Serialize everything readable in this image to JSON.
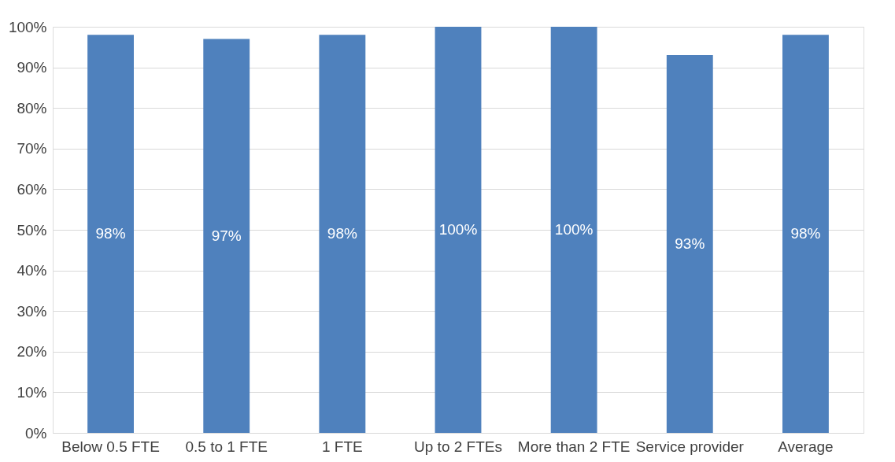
{
  "chart_data": {
    "type": "bar",
    "categories": [
      "Below 0.5 FTE",
      "0.5 to 1 FTE",
      "1 FTE",
      "Up to 2 FTEs",
      "More than 2 FTE",
      "Service provider",
      "Average"
    ],
    "values": [
      98,
      97,
      98,
      100,
      100,
      93,
      98
    ],
    "value_labels": [
      "98%",
      "97%",
      "98%",
      "100%",
      "100%",
      "93%",
      "98%"
    ],
    "color": "#4f81bd",
    "ylim": [
      0,
      100
    ],
    "yticks": [
      {
        "value": 0,
        "label": "0%"
      },
      {
        "value": 10,
        "label": "10%"
      },
      {
        "value": 20,
        "label": "20%"
      },
      {
        "value": 30,
        "label": "30%"
      },
      {
        "value": 40,
        "label": "40%"
      },
      {
        "value": 50,
        "label": "50%"
      },
      {
        "value": 60,
        "label": "60%"
      },
      {
        "value": 70,
        "label": "70%"
      },
      {
        "value": 80,
        "label": "80%"
      },
      {
        "value": 90,
        "label": "90%"
      },
      {
        "value": 100,
        "label": "100%"
      }
    ],
    "grid": "y"
  }
}
